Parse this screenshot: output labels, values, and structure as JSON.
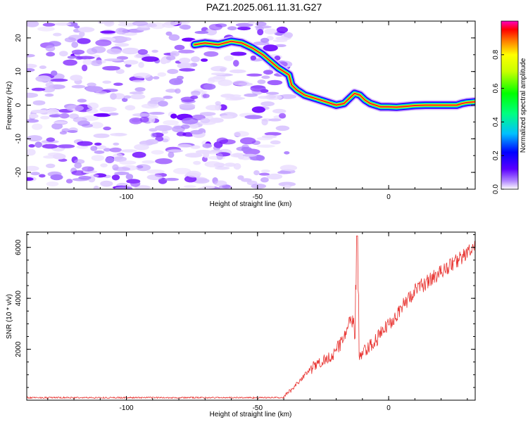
{
  "title": "PAZ1.2025.061.11.31.G27",
  "colors": {
    "snr_line": "#e8322f",
    "spectrogram_noise": "#8a3cff",
    "ridge_core": "#ff1a1a"
  },
  "chart_data": [
    {
      "type": "heatmap",
      "xlabel": "Height of straight line (km)",
      "ylabel": "Frequency (Hz)",
      "xlim": [
        -138,
        33
      ],
      "ylim": [
        -25,
        25
      ],
      "xticks": [
        -100,
        -50,
        0
      ],
      "yticks": [
        -20,
        -10,
        0,
        10,
        20
      ],
      "noise_region_x": [
        -138,
        -38
      ],
      "ridge": {
        "x": [
          -74,
          -70,
          -65,
          -60,
          -56,
          -52,
          -48,
          -45,
          -42,
          -40,
          -38,
          -37,
          -35,
          -32,
          -28,
          -24,
          -20,
          -17,
          -15,
          -13,
          -11,
          -9,
          -7,
          -5,
          -3,
          0,
          3,
          6,
          10,
          14,
          18,
          22,
          26,
          28,
          30,
          33
        ],
        "y": [
          18,
          18.5,
          18,
          19,
          18.5,
          17,
          15,
          13,
          11,
          10,
          9,
          6,
          4.5,
          3,
          2,
          1,
          0,
          0.5,
          2,
          3.5,
          3,
          1.5,
          0.5,
          0,
          -0.5,
          -0.5,
          -0.6,
          -0.4,
          -0.1,
          0,
          0,
          0,
          0,
          0.5,
          0.8,
          1
        ]
      },
      "colorbar": {
        "label": "Normalized spectral amplitude",
        "ticks": [
          "0.0",
          "0.2",
          "0.4",
          "0.6",
          "0.8"
        ],
        "tick_values": [
          0,
          0.2,
          0.4,
          0.6,
          0.8
        ],
        "range": [
          0,
          1
        ]
      }
    },
    {
      "type": "line",
      "xlabel": "Height of straight line (km)",
      "ylabel": "SNR (10 * v/v)",
      "xlim": [
        -138,
        33
      ],
      "ylim": [
        0,
        6600
      ],
      "xticks": [
        -100,
        -50,
        0
      ],
      "yticks": [
        2000,
        4000,
        6000
      ],
      "segments": [
        {
          "x": [
            -138,
            -40
          ],
          "y": [
            100,
            100
          ],
          "noise": 30
        },
        {
          "x": [
            -40,
            -30
          ],
          "y": [
            100,
            1200
          ],
          "noise": 100
        },
        {
          "x": [
            -30,
            -20
          ],
          "y": [
            1200,
            1900
          ],
          "noise": 250
        },
        {
          "x": [
            -20,
            -14
          ],
          "y": [
            1900,
            3200
          ],
          "noise": 300
        },
        {
          "x": [
            -14,
            -11
          ],
          "y": [
            3200,
            1700
          ],
          "noise": 400
        },
        {
          "x": [
            -11,
            -6
          ],
          "y": [
            1700,
            2200
          ],
          "noise": 300
        },
        {
          "x": [
            -6,
            10
          ],
          "y": [
            2200,
            4300
          ],
          "noise": 300
        },
        {
          "x": [
            10,
            33
          ],
          "y": [
            4300,
            6000
          ],
          "noise": 300
        }
      ],
      "spike": {
        "x": -12,
        "y": 6450
      }
    }
  ]
}
